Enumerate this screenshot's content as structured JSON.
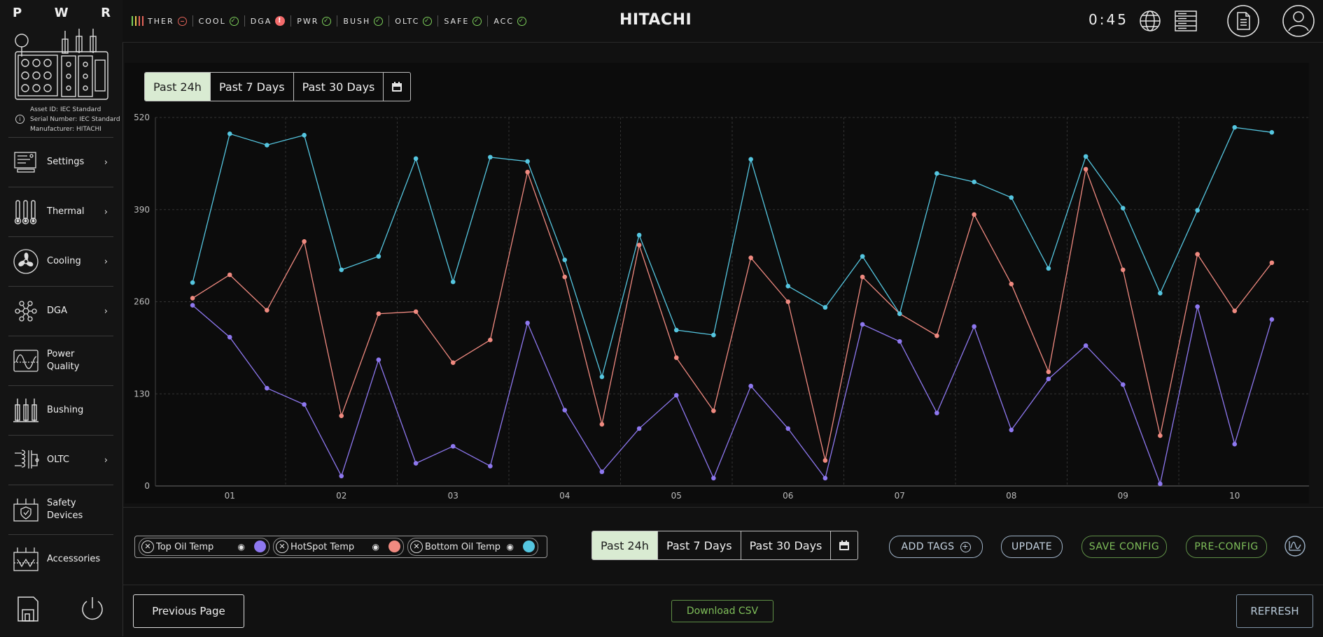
{
  "sidebar": {
    "letters": [
      "P",
      "W",
      "R"
    ],
    "asset_info": {
      "asset_id": "Asset ID: IEC Standard",
      "serial": "Serial Number: IEC Standard",
      "manufacturer": "Manufacturer: HITACHI"
    },
    "items": [
      {
        "label": "Settings",
        "icon": "settings-panel-icon",
        "chevron": true
      },
      {
        "label": "Thermal",
        "icon": "thermometer-icon",
        "chevron": true
      },
      {
        "label": "Cooling",
        "icon": "fan-icon",
        "chevron": true
      },
      {
        "label": "DGA",
        "icon": "molecule-icon",
        "chevron": true
      },
      {
        "label": "Power Quality",
        "icon": "waveform-icon",
        "chevron": false
      },
      {
        "label": "Bushing",
        "icon": "bushing-icon",
        "chevron": false
      },
      {
        "label": "OLTC",
        "icon": "tap-changer-icon",
        "chevron": true
      },
      {
        "label": "Safety Devices",
        "icon": "safety-device-icon",
        "chevron": false
      },
      {
        "label": "Accessories",
        "icon": "accessories-icon",
        "chevron": false
      }
    ]
  },
  "topbar": {
    "statuses": [
      {
        "label": "THER",
        "state": "neutral",
        "color": "#e5645a"
      },
      {
        "label": "COOL",
        "state": "ok",
        "color": "#7ccf5a"
      },
      {
        "label": "DGA",
        "state": "alert",
        "color": "#f26a6a"
      },
      {
        "label": "PWR",
        "state": "ok",
        "color": "#7ccf5a"
      },
      {
        "label": "BUSH",
        "state": "ok",
        "color": "#7ccf5a"
      },
      {
        "label": "OLTC",
        "state": "ok",
        "color": "#7ccf5a"
      },
      {
        "label": "SAFE",
        "state": "ok",
        "color": "#7ccf5a"
      },
      {
        "label": "ACC",
        "state": "ok",
        "color": "#7ccf5a"
      }
    ],
    "brand": "HITACHI",
    "timer": "0:45",
    "icons": [
      "globe-icon",
      "server-icon",
      "document-icon",
      "user-icon"
    ]
  },
  "top_range": {
    "options": [
      "Past 24h",
      "Past 7 Days",
      "Past 30 Days"
    ],
    "active": "Past 24h"
  },
  "bottom_range": {
    "options": [
      "Past 24h",
      "Past 7 Days",
      "Past 30 Days"
    ],
    "active": "Past 24h"
  },
  "legend": [
    {
      "label": "Top Oil Temp",
      "color": "#8e78f0"
    },
    {
      "label": "HotSpot Temp",
      "color": "#f08a80"
    },
    {
      "label": "Bottom Oil Temp",
      "color": "#55c6e0"
    }
  ],
  "actions": {
    "add_tags": "ADD TAGS",
    "update": "UPDATE",
    "save_config": "SAVE CONFIG",
    "pre_config": "PRE-CONFIG"
  },
  "footer": {
    "previous": "Previous Page",
    "download": "Download CSV",
    "refresh": "REFRESH"
  },
  "colors": {
    "accent_green": "#7fbf5a",
    "grid": "#3a3a3a",
    "blue_outline": "#9fb3c8"
  },
  "chart_data": {
    "type": "line",
    "x_ticks": [
      "01",
      "02",
      "03",
      "04",
      "05",
      "06",
      "07",
      "08",
      "09",
      "10"
    ],
    "y_ticks": [
      0,
      130,
      260,
      390,
      520
    ],
    "ylim": [
      0,
      520
    ],
    "xlim": [
      0.667,
      10.333
    ],
    "grid": true,
    "series": [
      {
        "name": "Top Oil Temp",
        "color": "#8e78f0",
        "x": [
          0.667,
          1.0,
          1.333,
          1.667,
          2.0,
          2.333,
          2.667,
          3.0,
          3.333,
          3.667,
          4.0,
          4.333,
          4.667,
          5.0,
          5.333,
          5.667,
          6.0,
          6.333,
          6.667,
          7.0,
          7.333,
          7.667,
          8.0,
          8.333,
          8.667,
          9.0,
          9.333,
          9.667,
          10.0,
          10.333
        ],
        "y": [
          255,
          210,
          138,
          115,
          14,
          178,
          32,
          56,
          28,
          230,
          107,
          20,
          81,
          128,
          11,
          141,
          81,
          11,
          228,
          204,
          103,
          225,
          79,
          151,
          198,
          143,
          3,
          253,
          59,
          235
        ]
      },
      {
        "name": "HotSpot Temp",
        "color": "#f08a80",
        "x": [
          0.667,
          1.0,
          1.333,
          1.667,
          2.0,
          2.333,
          2.667,
          3.0,
          3.333,
          3.667,
          4.0,
          4.333,
          4.667,
          5.0,
          5.333,
          5.667,
          6.0,
          6.333,
          6.667,
          7.0,
          7.333,
          7.667,
          8.0,
          8.333,
          8.667,
          9.0,
          9.333,
          9.667,
          10.0,
          10.333
        ],
        "y": [
          265,
          298,
          248,
          345,
          99,
          243,
          246,
          174,
          206,
          443,
          295,
          87,
          340,
          181,
          106,
          322,
          260,
          36,
          295,
          243,
          212,
          383,
          285,
          161,
          447,
          305,
          71,
          327,
          247,
          315
        ]
      },
      {
        "name": "Bottom Oil Temp",
        "color": "#55c6e0",
        "x": [
          0.667,
          1.0,
          1.333,
          1.667,
          2.0,
          2.333,
          2.667,
          3.0,
          3.333,
          3.667,
          4.0,
          4.333,
          4.667,
          5.0,
          5.333,
          5.667,
          6.0,
          6.333,
          6.667,
          7.0,
          7.333,
          7.667,
          8.0,
          8.333,
          8.667,
          9.0,
          9.333,
          9.667,
          10.0,
          10.333
        ],
        "y": [
          287,
          497,
          481,
          495,
          305,
          324,
          462,
          288,
          464,
          458,
          319,
          154,
          354,
          220,
          213,
          461,
          282,
          252,
          324,
          243,
          441,
          429,
          407,
          307,
          465,
          392,
          272,
          389,
          506,
          499
        ]
      }
    ]
  }
}
